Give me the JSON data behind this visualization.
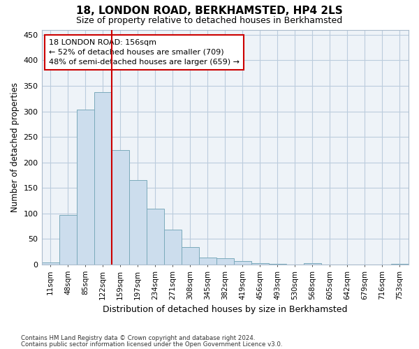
{
  "title": "18, LONDON ROAD, BERKHAMSTED, HP4 2LS",
  "subtitle": "Size of property relative to detached houses in Berkhamsted",
  "xlabel": "Distribution of detached houses by size in Berkhamsted",
  "ylabel": "Number of detached properties",
  "footer1": "Contains HM Land Registry data © Crown copyright and database right 2024.",
  "footer2": "Contains public sector information licensed under the Open Government Licence v3.0.",
  "bar_color": "#ccdded",
  "bar_edge_color": "#7aaabb",
  "vline_color": "#cc0000",
  "grid_color": "#bbccdd",
  "bg_color": "#eef3f8",
  "categories": [
    "11sqm",
    "48sqm",
    "85sqm",
    "122sqm",
    "159sqm",
    "197sqm",
    "234sqm",
    "271sqm",
    "308sqm",
    "345sqm",
    "382sqm",
    "419sqm",
    "456sqm",
    "493sqm",
    "530sqm",
    "568sqm",
    "605sqm",
    "642sqm",
    "679sqm",
    "716sqm",
    "753sqm"
  ],
  "values": [
    4,
    97,
    304,
    338,
    224,
    165,
    109,
    68,
    34,
    13,
    12,
    7,
    3,
    1,
    0,
    2,
    0,
    0,
    0,
    0,
    1
  ],
  "vline_pos": 3.5,
  "ann_line1": "18 LONDON ROAD: 156sqm",
  "ann_line2": "← 52% of detached houses are smaller (709)",
  "ann_line3": "48% of semi-detached houses are larger (659) →",
  "ylim": [
    0,
    460
  ],
  "yticks": [
    0,
    50,
    100,
    150,
    200,
    250,
    300,
    350,
    400,
    450
  ]
}
